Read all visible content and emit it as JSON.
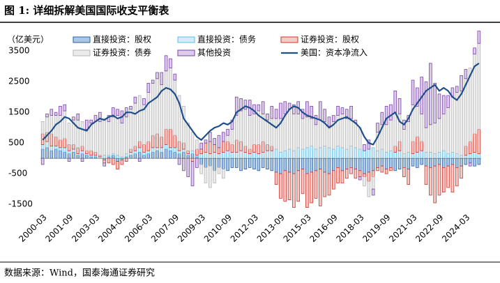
{
  "header": {
    "title": "图 1:  详细拆解美国国际收支平衡表"
  },
  "chart_data": {
    "type": "bar",
    "stacked": true,
    "y_label": "（亿美元）",
    "ylim": [
      -1700,
      3800
    ],
    "yticks": [
      -1500,
      -500,
      500,
      1500,
      2500,
      3500
    ],
    "grid": false,
    "categories": [
      "2000-03",
      null,
      null,
      null,
      null,
      null,
      "2001-09",
      null,
      null,
      null,
      null,
      null,
      "2003-03",
      null,
      null,
      null,
      null,
      null,
      "2004-09",
      null,
      null,
      null,
      null,
      null,
      "2006-03",
      null,
      null,
      null,
      null,
      null,
      "2007-09",
      null,
      null,
      null,
      null,
      null,
      "2009-03",
      null,
      null,
      null,
      null,
      null,
      "2010-09",
      null,
      null,
      null,
      null,
      null,
      "2012-03",
      null,
      null,
      null,
      null,
      null,
      "2013-09",
      null,
      null,
      null,
      null,
      null,
      "2015-03",
      null,
      null,
      null,
      null,
      null,
      "2016-09",
      null,
      null,
      null,
      null,
      null,
      "2018-03",
      null,
      null,
      null,
      null,
      null,
      "2019-09",
      null,
      null,
      null,
      null,
      null,
      "2021-03",
      null,
      null,
      null,
      null,
      null,
      "2022-09",
      null,
      null,
      null,
      null,
      null,
      "2024-03",
      null,
      null,
      null
    ],
    "series": [
      {
        "name": "直接投资：股权",
        "type": "bar",
        "color": "#2e5fa0",
        "fill": "#a9c8e8",
        "values": [
          300,
          350,
          250,
          300,
          250,
          200,
          150,
          200,
          100,
          150,
          100,
          50,
          50,
          0,
          -50,
          50,
          100,
          -100,
          -50,
          50,
          100,
          150,
          200,
          100,
          150,
          200,
          250,
          200,
          300,
          250,
          200,
          150,
          200,
          100,
          150,
          50,
          -200,
          -300,
          -250,
          -400,
          -300,
          -350,
          -400,
          -300,
          -300,
          -400,
          -350,
          -300,
          -350,
          -400,
          -300,
          -350,
          -400,
          -450,
          -500,
          -400,
          -450,
          -500,
          -400,
          -350,
          -500,
          -450,
          -400,
          -350,
          -450,
          -500,
          -400,
          -300,
          -400,
          -350,
          -300,
          -350,
          -400,
          -500,
          -450,
          -400,
          -300,
          -250,
          -350,
          -300,
          -400,
          -350,
          -300,
          -350,
          -250,
          -300,
          -200,
          -250,
          -300,
          -250,
          -200,
          -300,
          -250,
          -200,
          -300,
          -250,
          -200,
          -150,
          -250,
          -200
        ]
      },
      {
        "name": "直接投资：债务",
        "type": "bar",
        "color": "#5bbbe6",
        "fill": "#d3ecf8",
        "values": [
          150,
          200,
          150,
          100,
          100,
          150,
          100,
          100,
          50,
          100,
          50,
          50,
          50,
          50,
          100,
          50,
          50,
          100,
          50,
          100,
          100,
          100,
          150,
          100,
          100,
          150,
          100,
          150,
          150,
          100,
          150,
          100,
          100,
          50,
          100,
          50,
          150,
          200,
          150,
          200,
          150,
          200,
          250,
          200,
          200,
          250,
          200,
          150,
          200,
          150,
          200,
          250,
          250,
          300,
          200,
          250,
          300,
          250,
          350,
          300,
          350,
          400,
          300,
          350,
          400,
          350,
          300,
          400,
          350,
          300,
          400,
          350,
          300,
          250,
          300,
          350,
          250,
          300,
          200,
          250,
          200,
          250,
          150,
          200,
          150,
          200,
          250,
          200,
          200,
          150,
          200,
          250,
          150,
          200,
          150,
          100,
          100,
          150,
          200,
          150
        ]
      },
      {
        "name": "证券投资：股权",
        "type": "bar",
        "color": "#d0342c",
        "fill": "#f5cbc7",
        "values": [
          350,
          300,
          400,
          300,
          250,
          300,
          200,
          150,
          200,
          150,
          100,
          150,
          100,
          50,
          -100,
          -150,
          -200,
          -250,
          -150,
          -100,
          100,
          150,
          200,
          250,
          300,
          400,
          450,
          350,
          500,
          600,
          400,
          300,
          200,
          100,
          -100,
          200,
          150,
          300,
          400,
          250,
          200,
          350,
          300,
          250,
          400,
          300,
          200,
          150,
          250,
          300,
          350,
          200,
          150,
          -400,
          -800,
          -1000,
          -900,
          -1100,
          -1000,
          -800,
          -1100,
          -1000,
          -900,
          -1200,
          -800,
          -700,
          -600,
          -500,
          -400,
          -300,
          -200,
          -300,
          -200,
          -100,
          -300,
          -200,
          -100,
          -200,
          -150,
          -100,
          200,
          300,
          -300,
          -500,
          400,
          500,
          300,
          -600,
          -900,
          -1200,
          -1000,
          -800,
          -700,
          -900,
          -600,
          -400,
          300,
          400,
          600,
          800
        ]
      },
      {
        "name": "证券投资：债券",
        "type": "bar",
        "color": "#b5b5b5",
        "fill": "#ebebeb",
        "values": [
          400,
          500,
          600,
          700,
          800,
          900,
          700,
          800,
          900,
          800,
          700,
          900,
          1000,
          1100,
          1200,
          1100,
          1200,
          1300,
          1100,
          1200,
          1300,
          1400,
          1500,
          1300,
          1600,
          1700,
          1800,
          1700,
          1900,
          2000,
          1800,
          1500,
          1200,
          900,
          600,
          300,
          -300,
          -500,
          -700,
          -400,
          -200,
          -300,
          200,
          500,
          800,
          1000,
          1200,
          1100,
          1000,
          1100,
          900,
          800,
          900,
          1000,
          1100,
          1200,
          1300,
          1200,
          1100,
          1000,
          1000,
          900,
          800,
          900,
          800,
          700,
          900,
          1000,
          1100,
          1000,
          900,
          800,
          700,
          -300,
          -500,
          -400,
          600,
          800,
          900,
          1000,
          1100,
          900,
          800,
          1000,
          1200,
          1000,
          900,
          800,
          900,
          1000,
          1100,
          1200,
          1500,
          1800,
          2000,
          2100,
          2200,
          2400,
          2600,
          2800
        ]
      },
      {
        "name": "其他投资",
        "type": "bar",
        "color": "#7a45a8",
        "fill": "#dccbeb",
        "values": [
          -200,
          100,
          200,
          100,
          300,
          200,
          -100,
          100,
          200,
          -100,
          300,
          100,
          200,
          300,
          -100,
          200,
          300,
          200,
          400,
          300,
          100,
          200,
          -100,
          200,
          300,
          100,
          200,
          400,
          500,
          300,
          200,
          -200,
          -400,
          -600,
          -800,
          -300,
          200,
          100,
          300,
          200,
          400,
          300,
          200,
          300,
          600,
          400,
          300,
          500,
          300,
          200,
          400,
          200,
          400,
          300,
          500,
          400,
          200,
          300,
          400,
          300,
          500,
          400,
          300,
          600,
          400,
          300,
          200,
          300,
          200,
          300,
          400,
          100,
          -100,
          200,
          300,
          -200,
          300,
          400,
          600,
          500,
          700,
          500,
          300,
          200,
          800,
          600,
          1200,
          1500,
          2000,
          1300,
          800,
          600,
          400,
          300,
          200,
          500,
          300,
          -100,
          200,
          400
        ]
      },
      {
        "name": "美国：资本净流入",
        "type": "line",
        "color": "#1f4e8c",
        "values": [
          600,
          750,
          900,
          1100,
          1200,
          1350,
          1300,
          1150,
          1000,
          950,
          900,
          1100,
          1200,
          1300,
          1250,
          1350,
          1400,
          1300,
          1350,
          1500,
          1500,
          1450,
          1550,
          1600,
          1800,
          1900,
          2000,
          2200,
          2300,
          2250,
          2100,
          1800,
          1300,
          1100,
          900,
          700,
          600,
          750,
          900,
          1000,
          1050,
          1150,
          1100,
          1200,
          1500,
          1600,
          1700,
          1650,
          1550,
          1400,
          1300,
          1200,
          1100,
          1000,
          1150,
          1400,
          1600,
          1700,
          1650,
          1500,
          1400,
          1350,
          1300,
          1250,
          1150,
          1000,
          1100,
          1250,
          1300,
          1350,
          1250,
          1150,
          1000,
          700,
          500,
          450,
          700,
          1000,
          1300,
          1400,
          1500,
          1200,
          1100,
          1300,
          1600,
          1800,
          2000,
          2200,
          2300,
          2400,
          2200,
          2300,
          2200,
          2000,
          1900,
          2100,
          2400,
          2700,
          3000,
          3100
        ]
      }
    ]
  },
  "footer": {
    "source": "数据来源：Wind，国泰海通证券研究"
  }
}
